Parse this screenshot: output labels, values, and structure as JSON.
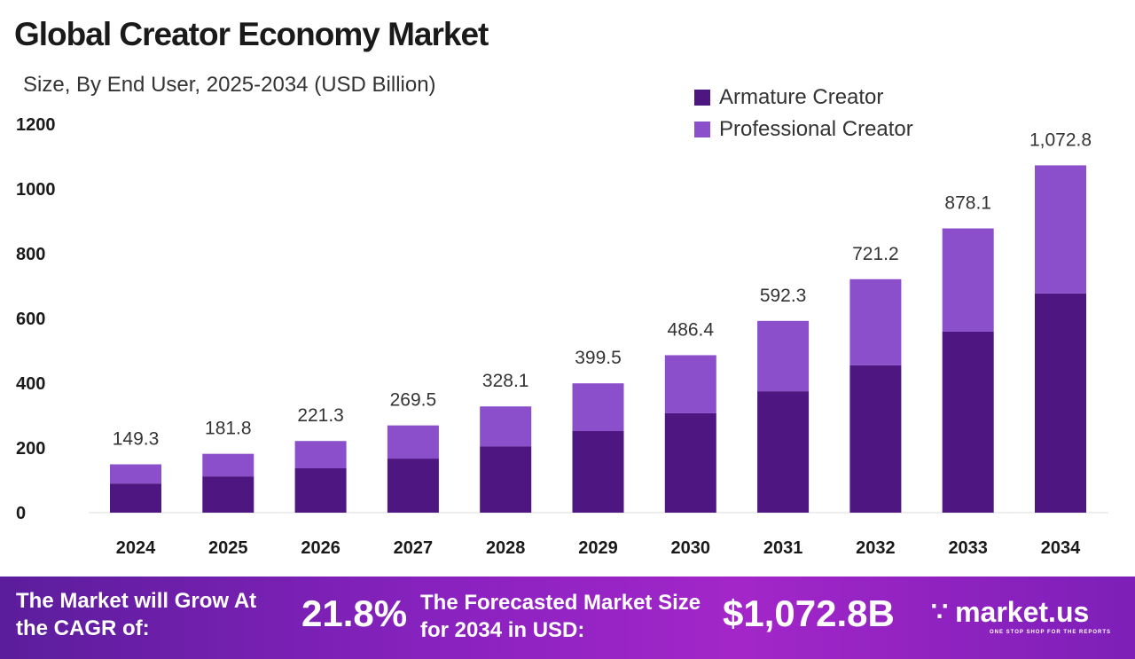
{
  "chart_data": {
    "type": "bar",
    "stacked": true,
    "title": "Global Creator Economy Market",
    "subtitle": "Size, By End User, 2025-2034 (USD Billion)",
    "xlabel": "",
    "ylabel": "",
    "ylim": [
      0,
      1200
    ],
    "yticks": [
      0,
      200,
      400,
      600,
      800,
      1000,
      1200
    ],
    "grid": false,
    "legend_position": "top-right",
    "categories": [
      "2024",
      "2025",
      "2026",
      "2027",
      "2028",
      "2029",
      "2030",
      "2031",
      "2032",
      "2033",
      "2034"
    ],
    "series": [
      {
        "name": "Armature Creator",
        "color": "#4e1680",
        "values": [
          90,
          112,
          137,
          167,
          205,
          252,
          307,
          375,
          455,
          559,
          677
        ]
      },
      {
        "name": "Professional Creator",
        "color": "#8b4fcc",
        "values": [
          59.3,
          69.8,
          84.3,
          102.5,
          123.1,
          147.5,
          179.4,
          217.3,
          266.2,
          319.1,
          395.8
        ]
      }
    ],
    "totals": [
      149.3,
      181.8,
      221.3,
      269.5,
      328.1,
      399.5,
      486.4,
      592.3,
      721.2,
      878.1,
      1072.8
    ],
    "total_labels": [
      "149.3",
      "181.8",
      "221.3",
      "269.5",
      "328.1",
      "399.5",
      "486.4",
      "592.3",
      "721.2",
      "878.1",
      "1,072.8"
    ]
  },
  "footer": {
    "cagr_text": "The Market will Grow At the CAGR of:",
    "cagr_value": "21.8%",
    "forecast_text": "The Forecasted Market Size for 2034 in USD:",
    "forecast_value": "$1,072.8B",
    "logo_text": "market.us",
    "logo_tagline": "ONE STOP SHOP FOR THE REPORTS"
  }
}
